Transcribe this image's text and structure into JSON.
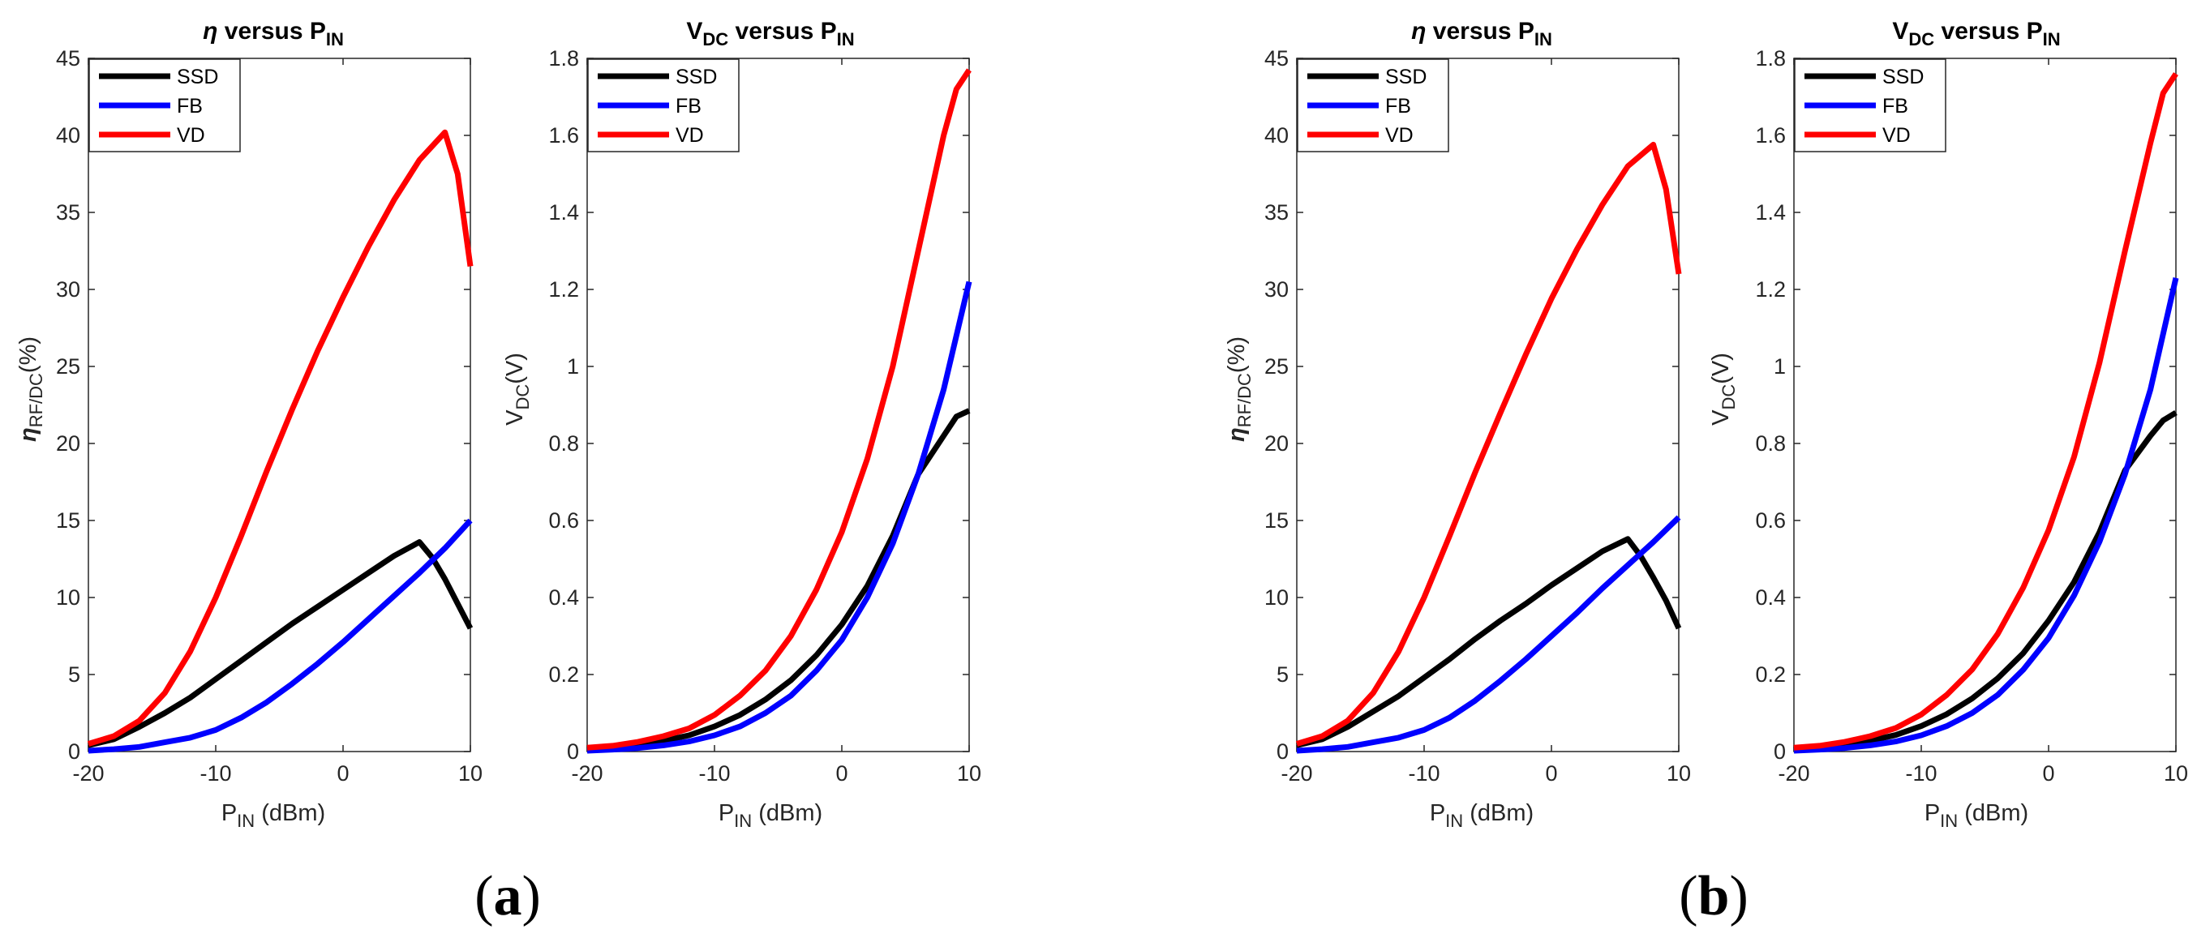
{
  "figure": {
    "panels": [
      {
        "label": "(a)",
        "label_parts": [
          "(",
          "a",
          ")"
        ]
      },
      {
        "label": "(b)",
        "label_parts": [
          "(",
          "b",
          ")"
        ]
      }
    ],
    "subplot_titles": {
      "eta": {
        "symbol": "η",
        "mid": " versus P",
        "sub": "IN"
      },
      "vdc": {
        "main": "V",
        "sub1": "DC",
        "mid": " versus P",
        "sub2": "IN"
      }
    },
    "axis_labels": {
      "x": {
        "p": "P",
        "sub": "IN",
        "rest": " (dBm)"
      },
      "eta_y": {
        "symbol": "η",
        "sub": "RF/DC",
        "rest": "(%)"
      },
      "vdc_y": {
        "main": "V",
        "sub": "DC",
        "rest": "(V)"
      }
    },
    "colors": {
      "SSD": "#000000",
      "FB": "#0000ff",
      "VD": "#ff0000"
    }
  },
  "chart_data": [
    {
      "id": "a-eta",
      "panel": "(a)",
      "type": "line",
      "title": "η versus PIN",
      "xlabel": "PIN (dBm)",
      "ylabel": "ηRF/DC(%)",
      "xlim": [
        -20,
        10
      ],
      "ylim": [
        0,
        45
      ],
      "xticks": [
        -20,
        -10,
        0,
        10
      ],
      "yticks": [
        0,
        5,
        10,
        15,
        20,
        25,
        30,
        35,
        40,
        45
      ],
      "legend": "top-left",
      "series": [
        {
          "name": "SSD",
          "color": "#000000",
          "x": [
            -20,
            -18,
            -16,
            -14,
            -12,
            -10,
            -8,
            -6,
            -4,
            -2,
            0,
            2,
            4,
            6,
            7,
            8,
            10
          ],
          "y": [
            0.4,
            0.8,
            1.6,
            2.5,
            3.5,
            4.7,
            5.9,
            7.1,
            8.3,
            9.4,
            10.5,
            11.6,
            12.7,
            13.6,
            12.6,
            11.2,
            8.0
          ]
        },
        {
          "name": "FB",
          "color": "#0000ff",
          "x": [
            -20,
            -18,
            -16,
            -14,
            -12,
            -10,
            -8,
            -6,
            -4,
            -2,
            0,
            2,
            4,
            6,
            8,
            10
          ],
          "y": [
            0.05,
            0.15,
            0.3,
            0.6,
            0.9,
            1.4,
            2.2,
            3.2,
            4.4,
            5.7,
            7.1,
            8.6,
            10.1,
            11.6,
            13.2,
            15.0
          ]
        },
        {
          "name": "VD",
          "color": "#ff0000",
          "x": [
            -20,
            -18,
            -16,
            -14,
            -12,
            -10,
            -8,
            -6,
            -4,
            -2,
            0,
            2,
            4,
            6,
            8,
            9,
            10
          ],
          "y": [
            0.5,
            1.0,
            2.0,
            3.8,
            6.5,
            10.0,
            14.0,
            18.2,
            22.2,
            26.0,
            29.5,
            32.8,
            35.8,
            38.4,
            40.2,
            37.5,
            31.5
          ]
        }
      ]
    },
    {
      "id": "a-vdc",
      "panel": "(a)",
      "type": "line",
      "title": "VDC versus PIN",
      "xlabel": "PIN (dBm)",
      "ylabel": "VDC(V)",
      "xlim": [
        -20,
        10
      ],
      "ylim": [
        0,
        1.8
      ],
      "xticks": [
        -20,
        -10,
        0,
        10
      ],
      "yticks": [
        0,
        0.2,
        0.4,
        0.6,
        0.8,
        1,
        1.2,
        1.4,
        1.6,
        1.8
      ],
      "legend": "top-left",
      "series": [
        {
          "name": "SSD",
          "color": "#000000",
          "x": [
            -20,
            -18,
            -16,
            -14,
            -12,
            -10,
            -8,
            -6,
            -4,
            -2,
            0,
            2,
            4,
            6,
            8,
            9,
            10
          ],
          "y": [
            0.005,
            0.01,
            0.018,
            0.028,
            0.042,
            0.065,
            0.095,
            0.135,
            0.185,
            0.25,
            0.33,
            0.43,
            0.56,
            0.72,
            0.82,
            0.87,
            0.885
          ]
        },
        {
          "name": "FB",
          "color": "#0000ff",
          "x": [
            -20,
            -18,
            -16,
            -14,
            -12,
            -10,
            -8,
            -6,
            -4,
            -2,
            0,
            2,
            4,
            6,
            8,
            10
          ],
          "y": [
            0.002,
            0.005,
            0.009,
            0.016,
            0.026,
            0.042,
            0.065,
            0.1,
            0.145,
            0.21,
            0.29,
            0.4,
            0.54,
            0.72,
            0.94,
            1.22
          ]
        },
        {
          "name": "VD",
          "color": "#ff0000",
          "x": [
            -20,
            -18,
            -16,
            -14,
            -12,
            -10,
            -8,
            -6,
            -4,
            -2,
            0,
            2,
            4,
            6,
            8,
            9,
            10
          ],
          "y": [
            0.01,
            0.015,
            0.025,
            0.04,
            0.06,
            0.095,
            0.145,
            0.21,
            0.3,
            0.42,
            0.57,
            0.76,
            1.0,
            1.3,
            1.6,
            1.72,
            1.77
          ]
        }
      ]
    },
    {
      "id": "b-eta",
      "panel": "(b)",
      "type": "line",
      "title": "η versus PIN",
      "xlabel": "PIN (dBm)",
      "ylabel": "ηRF/DC(%)",
      "xlim": [
        -20,
        10
      ],
      "ylim": [
        0,
        45
      ],
      "xticks": [
        -20,
        -10,
        0,
        10
      ],
      "yticks": [
        0,
        5,
        10,
        15,
        20,
        25,
        30,
        35,
        40,
        45
      ],
      "legend": "top-left",
      "series": [
        {
          "name": "SSD",
          "color": "#000000",
          "x": [
            -20,
            -18,
            -16,
            -14,
            -12,
            -10,
            -8,
            -6,
            -4,
            -2,
            0,
            2,
            4,
            6,
            7,
            8,
            9,
            10
          ],
          "y": [
            0.4,
            0.8,
            1.6,
            2.6,
            3.6,
            4.8,
            6.0,
            7.3,
            8.5,
            9.6,
            10.8,
            11.9,
            13.0,
            13.8,
            12.7,
            11.3,
            9.8,
            8.0
          ]
        },
        {
          "name": "FB",
          "color": "#0000ff",
          "x": [
            -20,
            -18,
            -16,
            -14,
            -12,
            -10,
            -8,
            -6,
            -4,
            -2,
            0,
            2,
            4,
            6,
            8,
            10
          ],
          "y": [
            0.05,
            0.15,
            0.3,
            0.6,
            0.9,
            1.4,
            2.2,
            3.3,
            4.6,
            6.0,
            7.5,
            9.0,
            10.6,
            12.1,
            13.6,
            15.2
          ]
        },
        {
          "name": "VD",
          "color": "#ff0000",
          "x": [
            -20,
            -18,
            -16,
            -14,
            -12,
            -10,
            -8,
            -6,
            -4,
            -2,
            0,
            2,
            4,
            6,
            8,
            9,
            10
          ],
          "y": [
            0.5,
            1.0,
            2.0,
            3.8,
            6.5,
            10.0,
            14.0,
            18.1,
            22.0,
            25.8,
            29.4,
            32.6,
            35.5,
            38.0,
            39.4,
            36.5,
            31.0
          ]
        }
      ]
    },
    {
      "id": "b-vdc",
      "panel": "(b)",
      "type": "line",
      "title": "VDC versus PIN",
      "xlabel": "PIN (dBm)",
      "ylabel": "VDC(V)",
      "xlim": [
        -20,
        10
      ],
      "ylim": [
        0,
        1.8
      ],
      "xticks": [
        -20,
        -10,
        0,
        10
      ],
      "yticks": [
        0,
        0.2,
        0.4,
        0.6,
        0.8,
        1,
        1.2,
        1.4,
        1.6,
        1.8
      ],
      "legend": "top-left",
      "series": [
        {
          "name": "SSD",
          "color": "#000000",
          "x": [
            -20,
            -18,
            -16,
            -14,
            -12,
            -10,
            -8,
            -6,
            -4,
            -2,
            0,
            2,
            4,
            6,
            8,
            9,
            10
          ],
          "y": [
            0.005,
            0.01,
            0.018,
            0.028,
            0.043,
            0.066,
            0.097,
            0.138,
            0.19,
            0.255,
            0.34,
            0.44,
            0.57,
            0.73,
            0.82,
            0.86,
            0.88
          ]
        },
        {
          "name": "FB",
          "color": "#0000ff",
          "x": [
            -20,
            -18,
            -16,
            -14,
            -12,
            -10,
            -8,
            -6,
            -4,
            -2,
            0,
            2,
            4,
            6,
            8,
            10
          ],
          "y": [
            0.002,
            0.005,
            0.009,
            0.016,
            0.026,
            0.042,
            0.066,
            0.1,
            0.147,
            0.212,
            0.295,
            0.405,
            0.545,
            0.72,
            0.94,
            1.23
          ]
        },
        {
          "name": "VD",
          "color": "#ff0000",
          "x": [
            -20,
            -18,
            -16,
            -14,
            -12,
            -10,
            -8,
            -6,
            -4,
            -2,
            0,
            2,
            4,
            6,
            8,
            9,
            10
          ],
          "y": [
            0.01,
            0.015,
            0.025,
            0.04,
            0.061,
            0.096,
            0.147,
            0.213,
            0.305,
            0.425,
            0.575,
            0.765,
            1.01,
            1.3,
            1.58,
            1.71,
            1.76
          ]
        }
      ]
    }
  ]
}
